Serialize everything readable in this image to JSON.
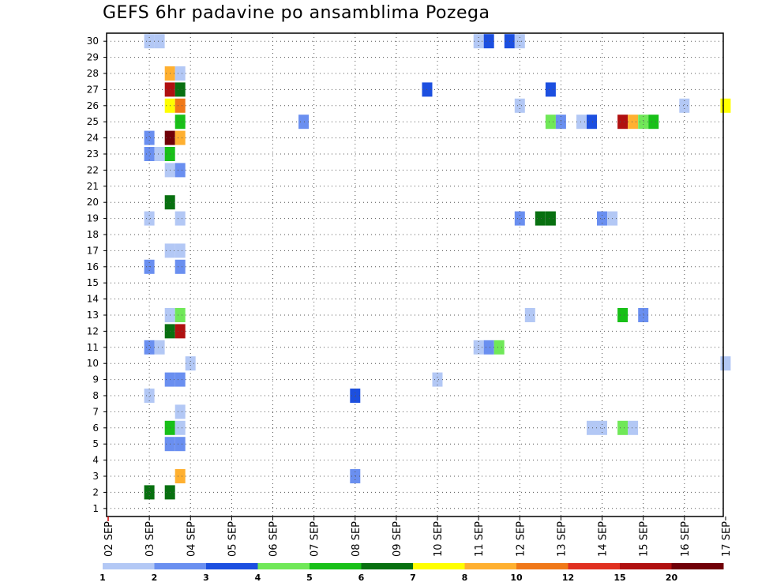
{
  "chart_data": {
    "type": "heatmap",
    "title": "GEFS 6hr padavine po ansamblima Pozega",
    "xlabel": "",
    "ylabel": "",
    "x_tick_labels": [
      "02 SEP",
      "03 SEP",
      "04 SEP",
      "05 SEP",
      "06 SEP",
      "07 SEP",
      "08 SEP",
      "09 SEP",
      "10 SEP",
      "11 SEP",
      "12 SEP",
      "13 SEP",
      "14 SEP",
      "15 SEP",
      "16 SEP",
      "17 SEP"
    ],
    "xlim": [
      0,
      15
    ],
    "ylim": [
      0,
      30
    ],
    "y_ticks": [
      1,
      2,
      3,
      4,
      5,
      6,
      7,
      8,
      9,
      10,
      11,
      12,
      13,
      14,
      15,
      16,
      17,
      18,
      19,
      20,
      21,
      22,
      23,
      24,
      25,
      26,
      27,
      28,
      29,
      30
    ],
    "grid": true,
    "colorbar": {
      "labels": [
        "1",
        "2",
        "3",
        "4",
        "5",
        "6",
        "7",
        "8",
        "10",
        "12",
        "15",
        "20"
      ],
      "colors": [
        "#b3c8f5",
        "#6a8ff0",
        "#1c4fe0",
        "#70e858",
        "#18c018",
        "#087010",
        "#ffff00",
        "#ffb030",
        "#f07818",
        "#e03020",
        "#b01010",
        "#700008"
      ]
    },
    "cells": [
      {
        "t": 1.0,
        "m": 30,
        "v": 1
      },
      {
        "t": 1.25,
        "m": 30,
        "v": 1
      },
      {
        "t": 9.0,
        "m": 30,
        "v": 1
      },
      {
        "t": 9.25,
        "m": 30,
        "v": 3
      },
      {
        "t": 9.75,
        "m": 30,
        "v": 3
      },
      {
        "t": 10.0,
        "m": 30,
        "v": 1
      },
      {
        "t": 1.5,
        "m": 28,
        "v": 8
      },
      {
        "t": 1.75,
        "m": 28,
        "v": 1
      },
      {
        "t": 1.5,
        "m": 27,
        "v": 15
      },
      {
        "t": 1.75,
        "m": 27,
        "v": 6
      },
      {
        "t": 7.75,
        "m": 27,
        "v": 3
      },
      {
        "t": 10.75,
        "m": 27,
        "v": 3
      },
      {
        "t": 1.5,
        "m": 26,
        "v": 7
      },
      {
        "t": 1.75,
        "m": 26,
        "v": 10
      },
      {
        "t": 10.0,
        "m": 26,
        "v": 1
      },
      {
        "t": 14.0,
        "m": 26,
        "v": 1
      },
      {
        "t": 15.0,
        "m": 26,
        "v": 7
      },
      {
        "t": 1.75,
        "m": 25,
        "v": 5
      },
      {
        "t": 4.75,
        "m": 25,
        "v": 2
      },
      {
        "t": 10.75,
        "m": 25,
        "v": 4
      },
      {
        "t": 11.0,
        "m": 25,
        "v": 2
      },
      {
        "t": 11.5,
        "m": 25,
        "v": 1
      },
      {
        "t": 11.75,
        "m": 25,
        "v": 3
      },
      {
        "t": 12.5,
        "m": 25,
        "v": 15
      },
      {
        "t": 12.75,
        "m": 25,
        "v": 8
      },
      {
        "t": 13.0,
        "m": 25,
        "v": 4
      },
      {
        "t": 13.25,
        "m": 25,
        "v": 5
      },
      {
        "t": 1.0,
        "m": 24,
        "v": 2
      },
      {
        "t": 1.5,
        "m": 24,
        "v": 20
      },
      {
        "t": 1.75,
        "m": 24,
        "v": 8
      },
      {
        "t": 1.0,
        "m": 23,
        "v": 2
      },
      {
        "t": 1.25,
        "m": 23,
        "v": 1
      },
      {
        "t": 1.5,
        "m": 23,
        "v": 5
      },
      {
        "t": 1.5,
        "m": 22,
        "v": 1
      },
      {
        "t": 1.75,
        "m": 22,
        "v": 2
      },
      {
        "t": 1.5,
        "m": 20,
        "v": 6
      },
      {
        "t": 1.0,
        "m": 19,
        "v": 1
      },
      {
        "t": 1.75,
        "m": 19,
        "v": 1
      },
      {
        "t": 10.0,
        "m": 19,
        "v": 2
      },
      {
        "t": 10.5,
        "m": 19,
        "v": 6
      },
      {
        "t": 10.75,
        "m": 19,
        "v": 6
      },
      {
        "t": 12.0,
        "m": 19,
        "v": 2
      },
      {
        "t": 12.25,
        "m": 19,
        "v": 1
      },
      {
        "t": 1.5,
        "m": 17,
        "v": 1
      },
      {
        "t": 1.75,
        "m": 17,
        "v": 1
      },
      {
        "t": 1.0,
        "m": 16,
        "v": 2
      },
      {
        "t": 1.75,
        "m": 16,
        "v": 2
      },
      {
        "t": 1.5,
        "m": 13,
        "v": 1
      },
      {
        "t": 1.75,
        "m": 13,
        "v": 4
      },
      {
        "t": 10.25,
        "m": 13,
        "v": 1
      },
      {
        "t": 12.5,
        "m": 13,
        "v": 5
      },
      {
        "t": 13.0,
        "m": 13,
        "v": 2
      },
      {
        "t": 1.5,
        "m": 12,
        "v": 6
      },
      {
        "t": 1.75,
        "m": 12,
        "v": 15
      },
      {
        "t": 1.0,
        "m": 11,
        "v": 2
      },
      {
        "t": 1.25,
        "m": 11,
        "v": 1
      },
      {
        "t": 9.0,
        "m": 11,
        "v": 1
      },
      {
        "t": 9.25,
        "m": 11,
        "v": 2
      },
      {
        "t": 9.5,
        "m": 11,
        "v": 4
      },
      {
        "t": 2.0,
        "m": 10,
        "v": 1
      },
      {
        "t": 15.0,
        "m": 10,
        "v": 1
      },
      {
        "t": 1.5,
        "m": 9,
        "v": 2
      },
      {
        "t": 1.75,
        "m": 9,
        "v": 2
      },
      {
        "t": 8.0,
        "m": 9,
        "v": 1
      },
      {
        "t": 1.0,
        "m": 8,
        "v": 1
      },
      {
        "t": 6.0,
        "m": 8,
        "v": 3
      },
      {
        "t": 1.75,
        "m": 7,
        "v": 1
      },
      {
        "t": 1.5,
        "m": 6,
        "v": 5
      },
      {
        "t": 1.75,
        "m": 6,
        "v": 1
      },
      {
        "t": 11.75,
        "m": 6,
        "v": 1
      },
      {
        "t": 12.0,
        "m": 6,
        "v": 1
      },
      {
        "t": 12.5,
        "m": 6,
        "v": 4
      },
      {
        "t": 12.75,
        "m": 6,
        "v": 1
      },
      {
        "t": 1.5,
        "m": 5,
        "v": 2
      },
      {
        "t": 1.75,
        "m": 5,
        "v": 2
      },
      {
        "t": 1.75,
        "m": 3,
        "v": 8
      },
      {
        "t": 6.0,
        "m": 3,
        "v": 2
      },
      {
        "t": 1.0,
        "m": 2,
        "v": 6
      },
      {
        "t": 1.5,
        "m": 2,
        "v": 6
      }
    ]
  }
}
